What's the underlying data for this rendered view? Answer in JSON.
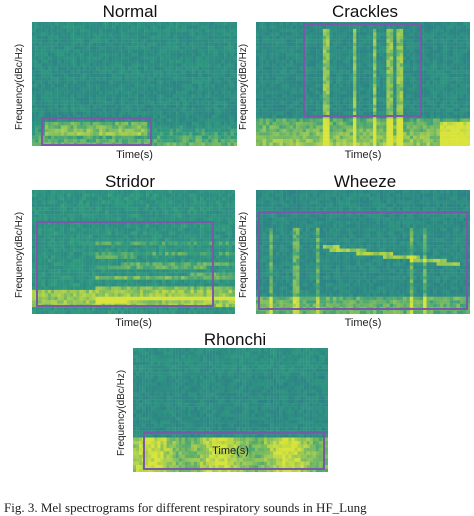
{
  "figure": {
    "panels": [
      {
        "title": "Normal",
        "xlabel": "Time(s)",
        "ylabel": "Frequency(dBc/Hz)",
        "pattern": "normal"
      },
      {
        "title": "Crackles",
        "xlabel": "Time(s)",
        "ylabel": "Frequency(dBc/Hz)",
        "pattern": "crackles"
      },
      {
        "title": "Stridor",
        "xlabel": "Time(s)",
        "ylabel": "Frequency(dBc/Hz)",
        "pattern": "stridor"
      },
      {
        "title": "Wheeze",
        "xlabel": "Time(s)",
        "ylabel": "Frequency(dBc/Hz)",
        "pattern": "wheeze"
      },
      {
        "title": "Rhonchi",
        "xlabel": "Time(s)",
        "ylabel": "Frequency(dBc/Hz)",
        "pattern": "rhonchi"
      }
    ],
    "caption": "Fig. 3.  Mel spectrograms for different respiratory sounds in HF_Lung",
    "colors": {
      "low": "#2b6a8e",
      "mid": "#2f9a7f",
      "high": "#d9e43a",
      "highlight_box": "#7a5aa8"
    }
  }
}
